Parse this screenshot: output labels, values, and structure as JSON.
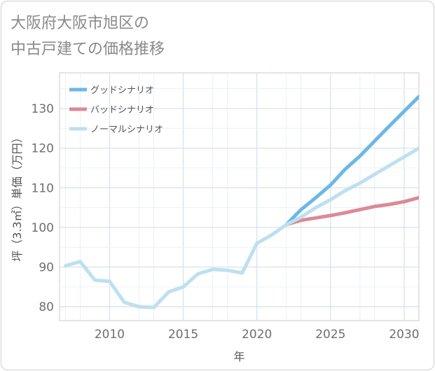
{
  "chart_data": {
    "type": "line",
    "title_lines": [
      "大阪府大阪市旭区の",
      "中古戸建ての価格推移"
    ],
    "xlabel": "年",
    "ylabel": "坪（3.3㎡）単価（万円）",
    "xlim": [
      2006.6,
      2031
    ],
    "ylim": [
      76.5,
      139
    ],
    "x_ticks": [
      2010,
      2015,
      2020,
      2025,
      2030
    ],
    "y_ticks": [
      80,
      90,
      100,
      110,
      120,
      130
    ],
    "grid": true,
    "legend_position": "top-left",
    "series": [
      {
        "name": "グッドシナリオ",
        "color": "#6cb8e6",
        "x": [
          2022,
          2023,
          2024,
          2025,
          2026,
          2027,
          2028,
          2029,
          2030,
          2031
        ],
        "y": [
          100.7,
          104.5,
          107.5,
          110.7,
          114.7,
          118.0,
          121.8,
          125.6,
          129.3,
          133.0
        ]
      },
      {
        "name": "バッドシナリオ",
        "color": "#dc8a95",
        "x": [
          2022,
          2023,
          2024,
          2025,
          2026,
          2027,
          2028,
          2029,
          2030,
          2031
        ],
        "y": [
          100.7,
          101.8,
          102.4,
          103.0,
          103.7,
          104.5,
          105.3,
          105.8,
          106.5,
          107.5
        ]
      },
      {
        "name": "ノーマルシナリオ",
        "color": "#bde0ef",
        "x": [
          2007,
          2008,
          2009,
          2010,
          2011,
          2012,
          2013,
          2014,
          2015,
          2016,
          2017,
          2018,
          2019,
          2020,
          2021,
          2022,
          2023,
          2024,
          2025,
          2026,
          2027,
          2028,
          2029,
          2030,
          2031
        ],
        "y": [
          90.3,
          91.4,
          86.7,
          86.4,
          81.1,
          80.0,
          79.8,
          83.7,
          85.0,
          88.3,
          89.4,
          89.2,
          88.5,
          96.0,
          98.1,
          100.7,
          102.6,
          105.0,
          107.0,
          109.3,
          111.2,
          113.4,
          115.6,
          117.8,
          120.0
        ]
      }
    ]
  }
}
